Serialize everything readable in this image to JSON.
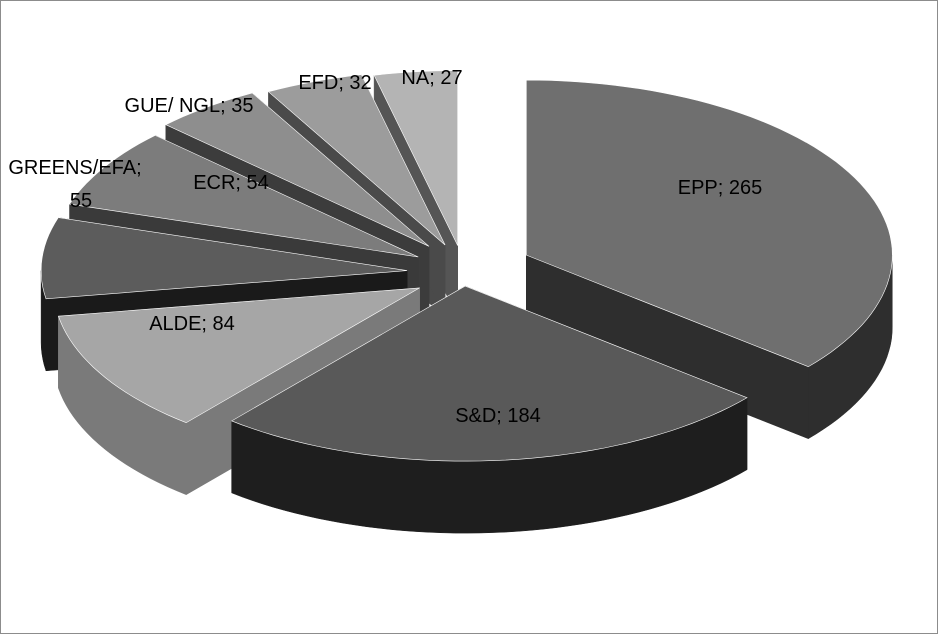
{
  "chart_data": {
    "type": "pie",
    "style": "3d-exploded",
    "title": "",
    "legend": "none",
    "slices": [
      {
        "category": "EPP",
        "value": 265,
        "label": "EPP; 265",
        "top_color": "#6f6f6f",
        "side_color": "#2e2e2e"
      },
      {
        "category": "S&D",
        "value": 184,
        "label": "S&D; 184",
        "top_color": "#595959",
        "side_color": "#1e1e1e"
      },
      {
        "category": "ALDE",
        "value": 84,
        "label": "ALDE; 84",
        "top_color": "#a6a6a6",
        "side_color": "#7a7a7a"
      },
      {
        "category": "GREENS/EFA",
        "value": 55,
        "label_lines": [
          "GREENS/EFA;",
          "55"
        ],
        "top_color": "#5c5c5c",
        "side_color": "#1a1a1a"
      },
      {
        "category": "ECR",
        "value": 54,
        "label": "ECR; 54",
        "top_color": "#7c7c7c",
        "side_color": "#3a3a3a"
      },
      {
        "category": "GUE/ NGL",
        "value": 35,
        "label": "GUE/ NGL; 35",
        "top_color": "#8e8e8e",
        "side_color": "#3c3c3c"
      },
      {
        "category": "EFD",
        "value": 32,
        "label": "EFD; 32",
        "top_color": "#9c9c9c",
        "side_color": "#4a4a4a"
      },
      {
        "category": "NA",
        "value": 27,
        "label": "NA; 27",
        "top_color": "#b4b4b4",
        "side_color": "#555555"
      }
    ]
  }
}
